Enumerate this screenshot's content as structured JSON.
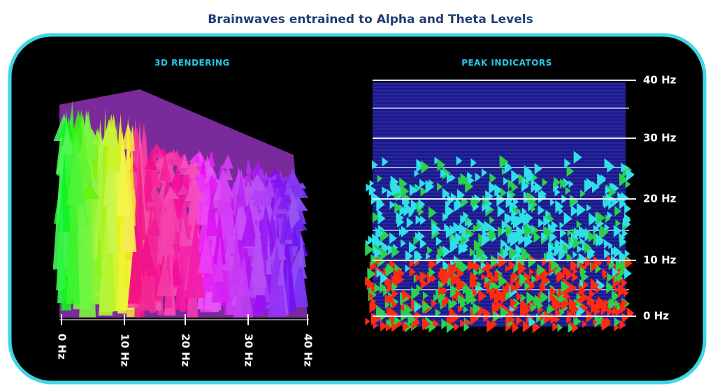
{
  "title": "Brainwaves entrained to Alpha and Theta Levels",
  "panels": [
    {
      "label": "3D RENDERING",
      "axis_labels": [
        "0 Hz",
        "10 Hz",
        "20 Hz",
        "30 Hz",
        "40 Hz"
      ]
    },
    {
      "label": "PEAK INDICATORS",
      "axis_labels": [
        "40 Hz",
        "30 Hz",
        "20 Hz",
        "10 Hz",
        "0 Hz"
      ]
    }
  ]
}
